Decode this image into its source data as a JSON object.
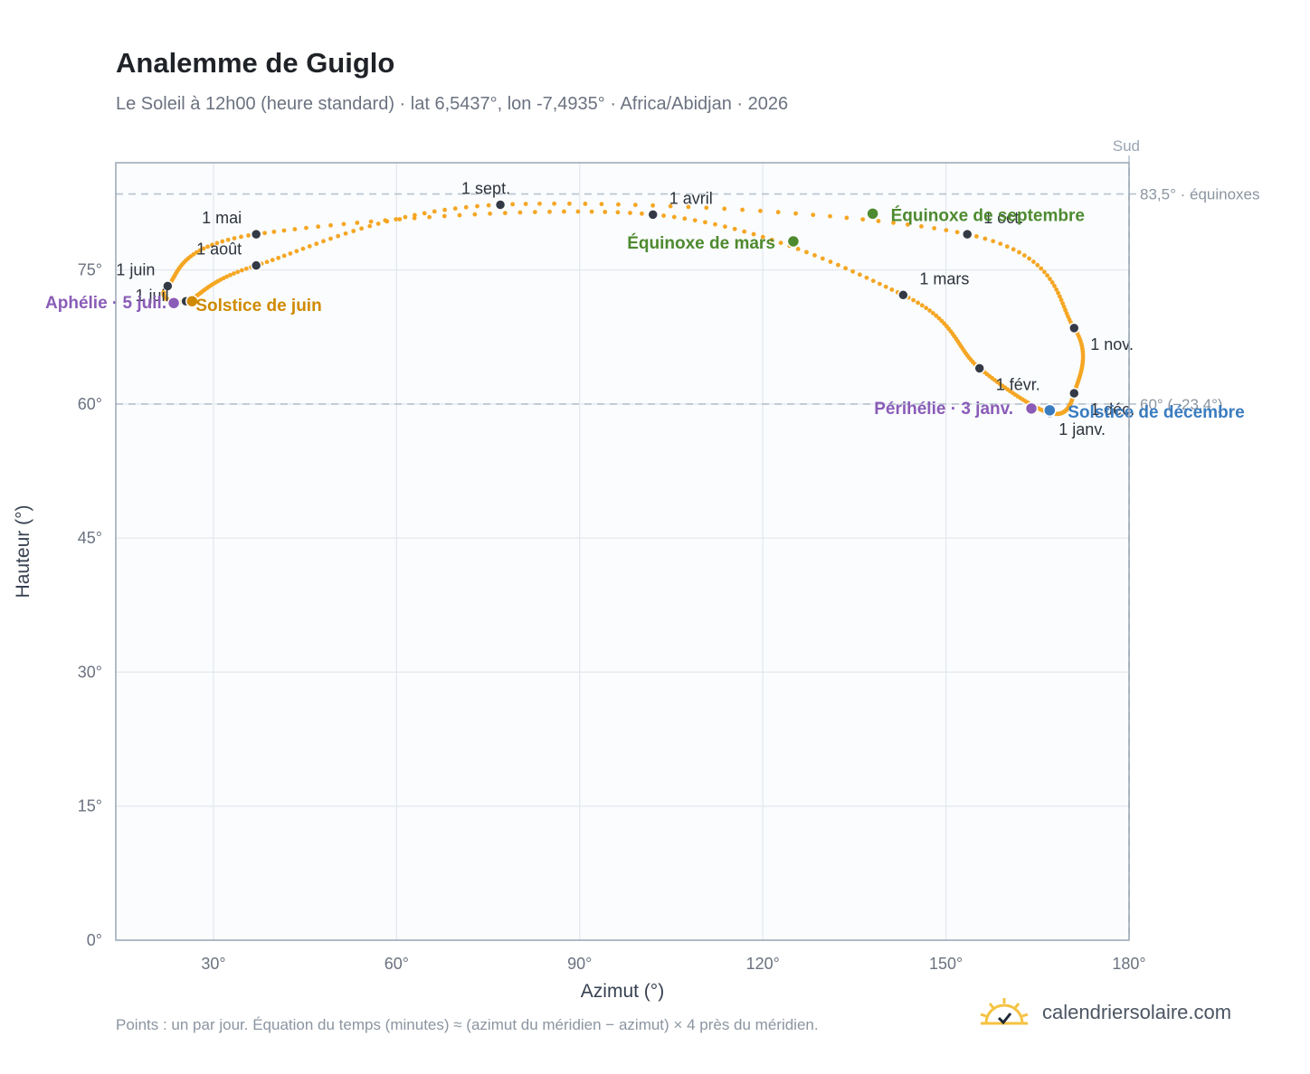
{
  "title": "Analemme de Guiglo",
  "subtitle": "Le Soleil à 12h00 (heure standard) · lat 6,5437°, lon -7,4935° · Africa/Abidjan · 2026",
  "footnote": "Points : un par jour. Équation du temps (minutes) ≈ (azimut du méridien − azimut) × 4 près du méridien.",
  "brand": {
    "name": "calendriersolaire.com",
    "icon": "sun-logo-icon"
  },
  "colors": {
    "curve": "#f5a623",
    "month_dot": "#343a45",
    "equinox": "#4e8a2f",
    "june_solstice": "#d08a00",
    "december_solstice": "#3a7cc0",
    "apsis": "#8a5cb8",
    "grid": "#e3e7ec",
    "reference_line": "#b8c2cd"
  },
  "chart_data": {
    "type": "scatter",
    "title": "Analemme de Guiglo",
    "xlabel": "Azimut (°)",
    "ylabel": "Hauteur (°)",
    "xlim": [
      14,
      180
    ],
    "ylim": [
      0,
      87
    ],
    "xticks": [
      30,
      60,
      90,
      120,
      150,
      180
    ],
    "xtick_labels": [
      "30°",
      "60°",
      "90°",
      "120°",
      "150°",
      "180°"
    ],
    "yticks": [
      0,
      15,
      30,
      45,
      60,
      75
    ],
    "ytick_labels": [
      "0°",
      "15°",
      "30°",
      "45°",
      "60°",
      "75°"
    ],
    "grid": true,
    "south_label": "Sud",
    "south_azimuth": 180,
    "reference_lines": [
      {
        "altitude": 83.5,
        "label": "83,5° · équinoxes"
      },
      {
        "altitude": 60.0,
        "label": "60° (−23,4°)"
      }
    ],
    "month_points": [
      {
        "label": "1 janv.",
        "az": 167.0,
        "alt": 59.0
      },
      {
        "label": "1 févr.",
        "az": 155.5,
        "alt": 64.0
      },
      {
        "label": "1 mars",
        "az": 143.0,
        "alt": 72.2
      },
      {
        "label": "1 avril",
        "az": 102.0,
        "alt": 81.2
      },
      {
        "label": "1 mai",
        "az": 37.0,
        "alt": 79.0
      },
      {
        "label": "1 juin",
        "az": 22.5,
        "alt": 73.2
      },
      {
        "label": "1 juil.",
        "az": 25.5,
        "alt": 71.5
      },
      {
        "label": "1 août",
        "az": 37.0,
        "alt": 75.5
      },
      {
        "label": "1 sept.",
        "az": 77.0,
        "alt": 82.3
      },
      {
        "label": "1 oct.",
        "az": 153.5,
        "alt": 79.0
      },
      {
        "label": "1 nov.",
        "az": 171.0,
        "alt": 68.5
      },
      {
        "label": "1 déc.",
        "az": 171.0,
        "alt": 61.2
      }
    ],
    "events": [
      {
        "label": "Équinoxe de mars",
        "az": 125.0,
        "alt": 78.2,
        "kind": "equinox"
      },
      {
        "label": "Équinoxe de septembre",
        "az": 138.0,
        "alt": 81.3,
        "kind": "equinox"
      },
      {
        "label": "Solstice de juin",
        "az": 26.5,
        "alt": 71.5,
        "kind": "june_solstice"
      },
      {
        "label": "Solstice de décembre",
        "az": 167.0,
        "alt": 59.3,
        "kind": "december_solstice"
      },
      {
        "label": "Aphélie · 5 juil.",
        "az": 23.5,
        "alt": 71.3,
        "kind": "apsis"
      },
      {
        "label": "Périhélie · 3 janv.",
        "az": 164.0,
        "alt": 59.5,
        "kind": "apsis"
      }
    ]
  }
}
